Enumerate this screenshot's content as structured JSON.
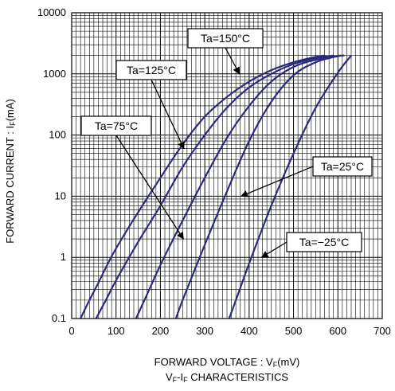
{
  "chart_data": {
    "type": "line",
    "x_axis": {
      "label_main": "FORWARD VOLTAGE : V",
      "label_sub": "F",
      "label_unit": "(mV)",
      "range": [
        0,
        700
      ],
      "ticks": [
        0,
        100,
        200,
        300,
        400,
        500,
        600,
        700
      ],
      "tick_labels": [
        "0",
        "100",
        "200",
        "300",
        "400",
        "500",
        "600",
        "700"
      ]
    },
    "y_axis": {
      "label_main": "FORWARD CURRENT : I",
      "label_sub": "F",
      "label_unit": "(mA)",
      "scale": "log",
      "range": [
        0.1,
        10000
      ],
      "ticks": [
        0.1,
        1,
        10,
        100,
        1000,
        10000
      ],
      "tick_labels": [
        "0.1",
        "1",
        "10",
        "100",
        "1000",
        "10000"
      ]
    },
    "caption": {
      "a": "V",
      "a_sub": "F",
      "mid": "-I",
      "b_sub": "F",
      "rest": " CHARACTERISTICS"
    },
    "grid": true,
    "series": [
      {
        "name": "Ta=150°C",
        "x": [
          20,
          40,
          60,
          80,
          100,
          150,
          200,
          250,
          300,
          350,
          400,
          450,
          500,
          550,
          570
        ],
        "y": [
          0.1,
          0.2,
          0.38,
          0.75,
          1.4,
          5.5,
          20,
          70,
          200,
          420,
          750,
          1150,
          1550,
          1900,
          2000
        ]
      },
      {
        "name": "Ta=125°C",
        "x": [
          55,
          80,
          100,
          150,
          200,
          250,
          300,
          350,
          400,
          450,
          500,
          550,
          590
        ],
        "y": [
          0.1,
          0.22,
          0.42,
          1.8,
          7,
          30,
          100,
          280,
          600,
          1000,
          1450,
          1800,
          2000
        ]
      },
      {
        "name": "Ta=75°C",
        "x": [
          145,
          175,
          200,
          250,
          300,
          350,
          400,
          450,
          500,
          550,
          605
        ],
        "y": [
          0.1,
          0.3,
          0.75,
          4,
          20,
          90,
          300,
          750,
          1300,
          1700,
          2000
        ]
      },
      {
        "name": "Ta=25°C",
        "x": [
          235,
          250,
          300,
          350,
          400,
          450,
          500,
          550,
          600,
          615
        ],
        "y": [
          0.1,
          0.2,
          1.6,
          12,
          80,
          350,
          950,
          1550,
          1950,
          2000
        ]
      },
      {
        "name": "Ta=−25°C",
        "x": [
          355,
          375,
          400,
          450,
          500,
          550,
          600,
          630
        ],
        "y": [
          0.1,
          0.25,
          0.8,
          7,
          50,
          280,
          1050,
          2000
        ]
      }
    ],
    "annotations": [
      {
        "text": "Ta=150°C",
        "series": 0,
        "point": [
          378,
          1000
        ]
      },
      {
        "text": "Ta=125°C",
        "series": 1,
        "point": [
          253,
          60
        ]
      },
      {
        "text": "Ta=75°C",
        "series": 2,
        "point": [
          252,
          2
        ]
      },
      {
        "text": "Ta=25°C",
        "series": 3,
        "point": [
          382,
          10
        ]
      },
      {
        "text": "Ta=−25°C",
        "series": 4,
        "point": [
          428,
          1
        ]
      }
    ],
    "colors": {
      "curve": "#2a2a80",
      "grid": "#000000",
      "frame": "#000000"
    }
  }
}
